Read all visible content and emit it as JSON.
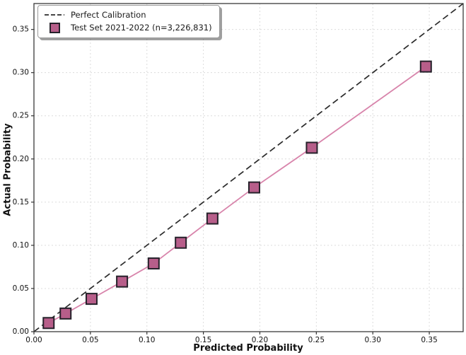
{
  "figure": {
    "background": "#ffffff"
  },
  "chart_data": {
    "type": "line",
    "title": "",
    "xlabel": "Predicted Probability",
    "ylabel": "Actual Probability",
    "xlim": [
      0,
      0.38
    ],
    "ylim": [
      0,
      0.38
    ],
    "xticks": [
      0,
      0.05,
      0.1,
      0.15,
      0.2,
      0.25,
      0.3,
      0.35
    ],
    "xtick_labels": [
      "0.00",
      "0.05",
      "0.10",
      "0.15",
      "0.20",
      "0.25",
      "0.30",
      "0.35"
    ],
    "yticks": [
      0,
      0.05,
      0.1,
      0.15,
      0.2,
      0.25,
      0.3,
      0.35
    ],
    "ytick_labels": [
      "0.00",
      "0.05",
      "0.10",
      "0.15",
      "0.20",
      "0.25",
      "0.30",
      "0.35"
    ],
    "grid": true,
    "grid_color": "#dcdcdc",
    "spine_color": "#3a3a3a",
    "tick_color": "#333333",
    "tick_label_color": "#111111",
    "legend_position": "upper-left",
    "series": [
      {
        "name": "Perfect Calibration",
        "type": "line",
        "line_style": "dashed",
        "color": "#2b2b2b",
        "x": [
          0,
          0.38
        ],
        "y": [
          0,
          0.38
        ]
      },
      {
        "name": "Test Set 2021-2022 (n=3,226,831)",
        "type": "line+markers",
        "line_style": "solid",
        "color": "#d884ab",
        "marker": "square",
        "marker_face": "#b75e8a",
        "marker_edge": "#26222b",
        "x": [
          0.013,
          0.028,
          0.051,
          0.078,
          0.106,
          0.13,
          0.158,
          0.195,
          0.246,
          0.347
        ],
        "y": [
          0.01,
          0.021,
          0.038,
          0.058,
          0.079,
          0.103,
          0.131,
          0.167,
          0.213,
          0.307
        ]
      }
    ]
  }
}
